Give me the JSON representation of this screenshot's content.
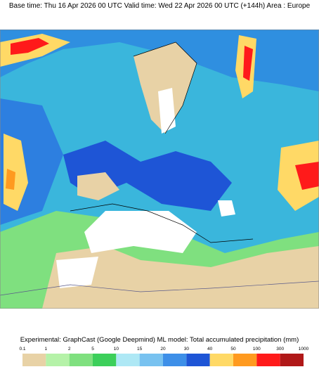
{
  "header": {
    "title": "Base time: Thu 16 Apr 2026 00 UTC Valid time: Wed 22 Apr 2026 00 UTC (+144h) Area : Europe"
  },
  "legend": {
    "title": "Experimental: GraphCast (Google Deepmind) ML model: Total accumulated precipitation (mm)",
    "thresholds": [
      0.1,
      1,
      2,
      5,
      10,
      15,
      20,
      30,
      40,
      50,
      100,
      300,
      1000
    ],
    "colors": [
      "#e8d2a6",
      "#b5f2a8",
      "#7fe07f",
      "#3ccf5a",
      "#aee8f5",
      "#78c2f0",
      "#3d8fe8",
      "#1e55d6",
      "#ffd966",
      "#ff9a1f",
      "#ff1a1a",
      "#b01818",
      "#ff2aff"
    ]
  }
}
